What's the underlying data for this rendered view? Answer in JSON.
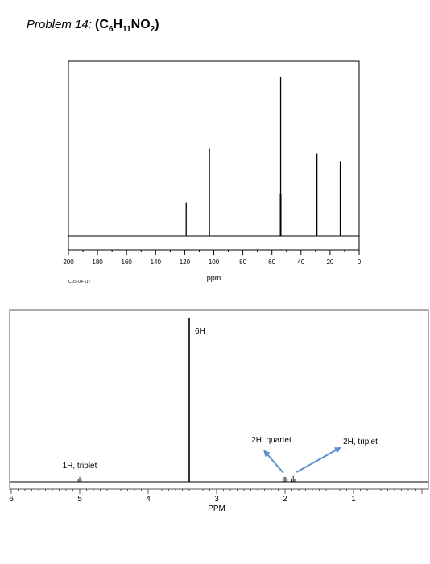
{
  "problem": {
    "label": "Problem 14:",
    "formula_parts": [
      {
        "text": "C",
        "sub": "6"
      },
      {
        "text": "H",
        "sub": "11"
      },
      {
        "text": "NO",
        "sub": "2"
      }
    ]
  },
  "chart_data": [
    {
      "type": "bar",
      "kind": "13C NMR stick spectrum",
      "xlabel": "ppm",
      "code": "CDS-04-117",
      "xlim": [
        200,
        0
      ],
      "x_ticks": [
        200,
        180,
        160,
        140,
        120,
        100,
        80,
        60,
        40,
        20,
        0
      ],
      "peaks": [
        {
          "ppm": 119,
          "height": 0.21
        },
        {
          "ppm": 103,
          "height": 0.55
        },
        {
          "ppm": 54,
          "height": 1.0
        },
        {
          "ppm": 29,
          "height": 0.52
        },
        {
          "ppm": 13,
          "height": 0.47
        }
      ],
      "grid": false
    },
    {
      "type": "line",
      "kind": "1H NMR spectrum",
      "xlabel": "PPM",
      "xlim": [
        6,
        0
      ],
      "x_ticks": [
        6,
        5,
        4,
        3,
        2,
        1
      ],
      "peaks": [
        {
          "ppm": 5.0,
          "height": 0.03,
          "multiplicity": "triplet"
        },
        {
          "ppm": 3.4,
          "height": 1.0
        },
        {
          "ppm": 2.0,
          "height": 0.03,
          "multiplicity": "quartet"
        },
        {
          "ppm": 1.88,
          "height": 0.035,
          "multiplicity": "triplet"
        }
      ],
      "annotations": [
        {
          "text": "6H"
        },
        {
          "text": "1H, triplet"
        },
        {
          "text": "2H, quartet"
        },
        {
          "text": "2H, triplet"
        }
      ],
      "arrow_color": "#5b8fd0",
      "grid": false
    }
  ]
}
